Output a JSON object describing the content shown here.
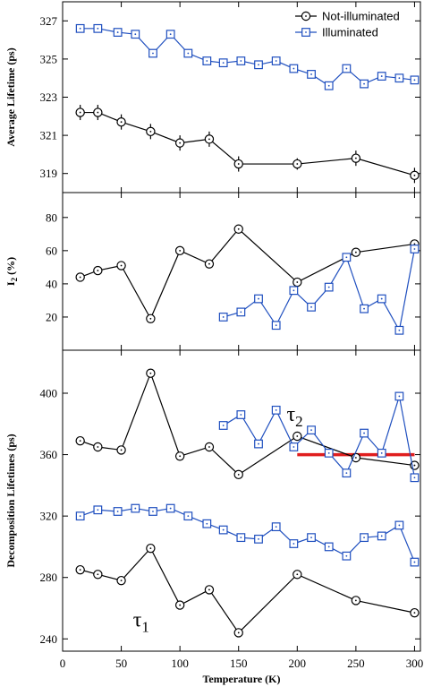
{
  "chart_data": [
    {
      "type": "line",
      "panel": "top",
      "ylabel": "Average Lifetime (ps)",
      "ylim": [
        318,
        328
      ],
      "yticks": [
        319,
        321,
        323,
        325,
        327
      ],
      "xlim": [
        0,
        305
      ],
      "legend": {
        "placement": "top-right",
        "entries": [
          "Not-illuminated",
          "Illuminated"
        ]
      },
      "series": [
        {
          "name": "Not-illuminated",
          "color": "#000000",
          "marker": "circle",
          "x": [
            15,
            30,
            50,
            75,
            100,
            125,
            150,
            200,
            250,
            300
          ],
          "y": [
            322.2,
            322.2,
            321.7,
            321.2,
            320.6,
            320.8,
            319.5,
            319.5,
            319.8,
            318.9
          ],
          "yerr": [
            0.4,
            0.4,
            0.4,
            0.4,
            0.4,
            0.4,
            0.4,
            0.3,
            0.4,
            0.4
          ]
        },
        {
          "name": "Illuminated",
          "color": "#1f4fbf",
          "marker": "square",
          "x": [
            15,
            30,
            47,
            62,
            77,
            92,
            107,
            123,
            137,
            152,
            167,
            182,
            197,
            212,
            227,
            242,
            257,
            272,
            287,
            300
          ],
          "y": [
            326.6,
            326.6,
            326.4,
            326.3,
            325.3,
            326.3,
            325.3,
            324.9,
            324.8,
            324.9,
            324.7,
            324.9,
            324.5,
            324.2,
            323.6,
            324.5,
            323.7,
            324.1,
            324.0,
            323.9
          ]
        }
      ]
    },
    {
      "type": "line",
      "panel": "middle",
      "ylabel": "I2 (%)",
      "ylim": [
        0,
        95
      ],
      "yticks": [
        20,
        40,
        60,
        80
      ],
      "xlim": [
        0,
        305
      ],
      "series": [
        {
          "name": "Not-illuminated",
          "color": "#000000",
          "marker": "circle",
          "x": [
            15,
            30,
            50,
            75,
            100,
            125,
            150,
            200,
            250,
            300
          ],
          "y": [
            44,
            48,
            51,
            19,
            60,
            52,
            73,
            41,
            59,
            64
          ]
        },
        {
          "name": "Illuminated",
          "color": "#1f4fbf",
          "marker": "square",
          "x": [
            137,
            152,
            167,
            182,
            197,
            212,
            227,
            242,
            257,
            272,
            287,
            300
          ],
          "y": [
            20,
            23,
            31,
            15,
            36,
            26,
            38,
            56,
            25,
            31,
            12,
            61
          ]
        }
      ]
    },
    {
      "type": "line",
      "panel": "bottom",
      "xlabel": "Temperature (K)",
      "ylabel": "Decomposition Lifetimes (ps)",
      "ylim": [
        232,
        428
      ],
      "yticks": [
        240,
        280,
        320,
        360,
        400
      ],
      "xlim": [
        0,
        305
      ],
      "xticks": [
        0,
        50,
        100,
        150,
        200,
        250,
        300
      ],
      "annotations": {
        "tau1": "τ1",
        "tau2": "τ2"
      },
      "reference_line": {
        "color": "#e01e1e",
        "x": [
          200,
          300
        ],
        "y": 360
      },
      "series": [
        {
          "name": "τ2 Not-illuminated",
          "color": "#000000",
          "marker": "circle",
          "x": [
            15,
            30,
            50,
            75,
            100,
            125,
            150,
            200,
            250,
            300
          ],
          "y": [
            369,
            365,
            363,
            413,
            359,
            365,
            347,
            372,
            358,
            353
          ]
        },
        {
          "name": "τ2 Illuminated",
          "color": "#1f4fbf",
          "marker": "square",
          "x": [
            137,
            152,
            167,
            182,
            197,
            212,
            227,
            242,
            257,
            272,
            287,
            300
          ],
          "y": [
            379,
            386,
            367,
            389,
            365,
            376,
            361,
            348,
            374,
            361,
            398,
            345
          ]
        },
        {
          "name": "τ1 Not-illuminated",
          "color": "#000000",
          "marker": "circle",
          "x": [
            15,
            30,
            50,
            75,
            100,
            125,
            150,
            200,
            250,
            300
          ],
          "y": [
            285,
            282,
            278,
            299,
            262,
            272,
            244,
            282,
            265,
            257
          ]
        },
        {
          "name": "τ1 Illuminated",
          "color": "#1f4fbf",
          "marker": "square",
          "x": [
            15,
            30,
            47,
            62,
            77,
            92,
            107,
            123,
            137,
            152,
            167,
            182,
            197,
            212,
            227,
            242,
            257,
            272,
            287,
            300
          ],
          "y": [
            320,
            324,
            323,
            325,
            323,
            325,
            320,
            315,
            311,
            306,
            305,
            313,
            302,
            306,
            300,
            294,
            306,
            307,
            314,
            290
          ]
        }
      ]
    }
  ]
}
